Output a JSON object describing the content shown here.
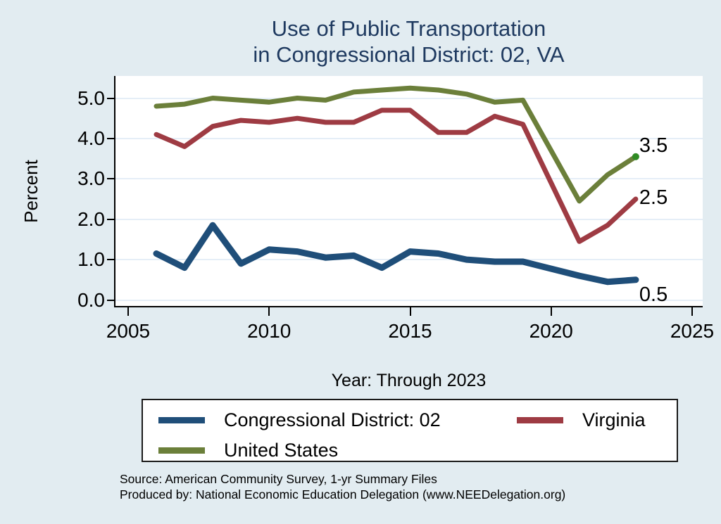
{
  "title": {
    "line1": "Use of Public Transportation",
    "line2": "in Congressional District: 02, VA"
  },
  "axes": {
    "y": {
      "label": "Percent",
      "tick_labels": [
        "0.0",
        "1.0",
        "2.0",
        "3.0",
        "4.0",
        "5.0"
      ],
      "tick_values": [
        0,
        1,
        2,
        3,
        4,
        5
      ],
      "range": [
        -0.15,
        5.55
      ],
      "grid": true
    },
    "x": {
      "label": "Year: Through 2023",
      "tick_labels": [
        "2005",
        "2010",
        "2015",
        "2020",
        "2025"
      ],
      "tick_values": [
        2005,
        2010,
        2015,
        2020,
        2025
      ],
      "range": [
        2004.55,
        2025.35
      ]
    }
  },
  "chart_data": {
    "type": "line",
    "title": "Use of Public Transportation in Congressional District: 02, VA",
    "xlabel": "Year: Through 2023",
    "ylabel": "Percent",
    "ylim": [
      -0.15,
      5.55
    ],
    "xlim": [
      2004.55,
      2025.35
    ],
    "grid": "horizontal",
    "legend_position": "bottom",
    "series": [
      {
        "name": "Congressional District: 02",
        "color": "#1f4e79",
        "end_label": "0.5",
        "points": [
          [
            2006,
            1.15
          ],
          [
            2007,
            0.8
          ],
          [
            2008,
            1.85
          ],
          [
            2009,
            0.9
          ],
          [
            2010,
            1.25
          ],
          [
            2011,
            1.2
          ],
          [
            2012,
            1.05
          ],
          [
            2013,
            1.1
          ],
          [
            2014,
            0.8
          ],
          [
            2015,
            1.2
          ],
          [
            2016,
            1.15
          ],
          [
            2017,
            1.0
          ],
          [
            2018,
            0.95
          ],
          [
            2019,
            0.95
          ],
          [
            2021,
            0.6
          ],
          [
            2022,
            0.45
          ],
          [
            2023,
            0.5
          ]
        ]
      },
      {
        "name": "Virginia",
        "color": "#9e3b43",
        "end_label": "2.5",
        "points": [
          [
            2006,
            4.1
          ],
          [
            2007,
            3.8
          ],
          [
            2008,
            4.3
          ],
          [
            2009,
            4.45
          ],
          [
            2010,
            4.4
          ],
          [
            2011,
            4.5
          ],
          [
            2012,
            4.4
          ],
          [
            2013,
            4.4
          ],
          [
            2014,
            4.7
          ],
          [
            2015,
            4.7
          ],
          [
            2016,
            4.15
          ],
          [
            2017,
            4.15
          ],
          [
            2018,
            4.55
          ],
          [
            2019,
            4.35
          ],
          [
            2021,
            1.45
          ],
          [
            2022,
            1.85
          ],
          [
            2023,
            2.5
          ]
        ]
      },
      {
        "name": "United States",
        "color": "#6b7f3a",
        "end_label": "3.5",
        "end_dot": true,
        "points": [
          [
            2006,
            4.8
          ],
          [
            2007,
            4.85
          ],
          [
            2008,
            5.0
          ],
          [
            2009,
            4.95
          ],
          [
            2010,
            4.9
          ],
          [
            2011,
            5.0
          ],
          [
            2012,
            4.95
          ],
          [
            2013,
            5.15
          ],
          [
            2014,
            5.2
          ],
          [
            2015,
            5.25
          ],
          [
            2016,
            5.2
          ],
          [
            2017,
            5.1
          ],
          [
            2018,
            4.9
          ],
          [
            2019,
            4.95
          ],
          [
            2021,
            2.45
          ],
          [
            2022,
            3.1
          ],
          [
            2023,
            3.55
          ]
        ]
      }
    ]
  },
  "footer": {
    "source": "Source: American Community Survey, 1-yr Summary Files",
    "produced_by": "Produced by: National Economic Education Delegation (www.NEEDelegation.org)"
  },
  "colors": {
    "background": "#e2ecf1",
    "plot_background": "#ffffff",
    "title_text": "#1f3a60",
    "gridline": "#e5eef7",
    "axis": "#000000",
    "district_line": "#1f4e79",
    "virginia_line": "#9e3b43",
    "united_states_line": "#6b7f3a",
    "end_dot": "#2f8b24"
  }
}
